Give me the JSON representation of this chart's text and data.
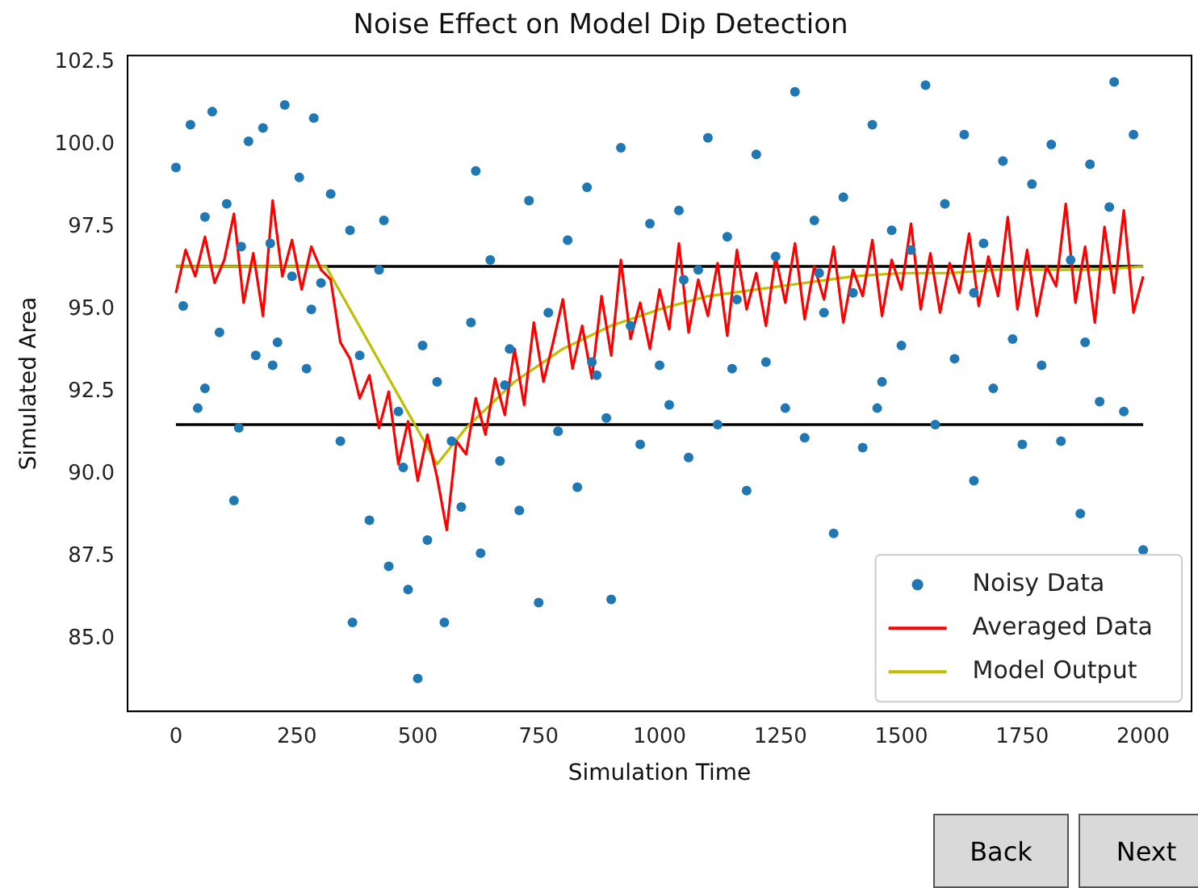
{
  "chart_data": {
    "type": "line",
    "title": "Noise Effect on Model Dip Detection",
    "xlabel": "Simulation Time",
    "ylabel": "Simulated Area",
    "xlim": [
      -100,
      2100
    ],
    "ylim": [
      82.8,
      102.7
    ],
    "xticks": [
      0,
      250,
      500,
      750,
      1000,
      1250,
      1500,
      1750,
      2000
    ],
    "yticks": [
      {
        "value": 85,
        "label": "85.0"
      },
      {
        "value": 87.5,
        "label": "87.5"
      },
      {
        "value": 90,
        "label": "90.0"
      },
      {
        "value": 92.5,
        "label": "92.5"
      },
      {
        "value": 95,
        "label": "95.0"
      },
      {
        "value": 97.5,
        "label": "97.5"
      },
      {
        "value": 100,
        "label": "100.0"
      },
      {
        "value": 102.5,
        "label": "102.5"
      }
    ],
    "grid": false,
    "legend": "bottom right",
    "ref_lines": [
      {
        "axis": "y",
        "value": 96.3,
        "color": "#000000"
      },
      {
        "axis": "y",
        "value": 91.5,
        "color": "#000000"
      }
    ],
    "series": [
      {
        "name": "Noisy Data",
        "type": "scatter",
        "marker": "circle",
        "color": "#1f77b4",
        "x": [
          0,
          15,
          30,
          45,
          60,
          75,
          90,
          105,
          120,
          135,
          150,
          165,
          180,
          195,
          210,
          225,
          240,
          255,
          270,
          285,
          300,
          320,
          340,
          360,
          365,
          380,
          400,
          420,
          440,
          460,
          480,
          500,
          510,
          520,
          540,
          555,
          570,
          590,
          610,
          630,
          650,
          670,
          690,
          710,
          730,
          750,
          770,
          790,
          810,
          830,
          850,
          870,
          890,
          900,
          920,
          940,
          960,
          980,
          1000,
          1020,
          1040,
          1060,
          1080,
          1100,
          1120,
          1140,
          1160,
          1180,
          1200,
          1220,
          1240,
          1260,
          1280,
          1300,
          1320,
          1340,
          1360,
          1380,
          1400,
          1420,
          1440,
          1460,
          1480,
          1500,
          1520,
          1550,
          1570,
          1590,
          1610,
          1630,
          1650,
          1670,
          1690,
          1710,
          1730,
          1750,
          1770,
          1790,
          1810,
          1830,
          1850,
          1870,
          1890,
          1910,
          1930,
          1940,
          1960,
          1980,
          2000,
          60,
          130,
          200,
          280,
          430,
          470,
          620,
          680,
          860,
          1050,
          1150,
          1330,
          1450,
          1650,
          1880
        ],
        "values": [
          99.3,
          95.1,
          100.6,
          92.0,
          97.8,
          101.0,
          94.3,
          98.2,
          89.2,
          96.9,
          100.1,
          93.6,
          100.5,
          97.0,
          94.0,
          101.2,
          96.0,
          99.0,
          93.2,
          100.8,
          95.8,
          98.5,
          91.0,
          97.4,
          85.5,
          93.6,
          88.6,
          96.2,
          87.2,
          91.9,
          86.5,
          83.8,
          93.9,
          88.0,
          92.8,
          85.5,
          91.0,
          89.0,
          94.6,
          87.6,
          96.5,
          90.4,
          93.8,
          88.9,
          98.3,
          86.1,
          94.9,
          91.3,
          97.1,
          89.6,
          98.7,
          93.0,
          91.7,
          86.2,
          99.9,
          94.5,
          90.9,
          97.6,
          93.3,
          92.1,
          98.0,
          90.5,
          96.2,
          100.2,
          91.5,
          97.2,
          95.3,
          89.5,
          99.7,
          93.4,
          96.6,
          92.0,
          101.6,
          91.1,
          97.7,
          94.9,
          88.2,
          98.4,
          95.5,
          90.8,
          100.6,
          92.8,
          97.4,
          93.9,
          96.8,
          101.8,
          91.5,
          98.2,
          93.5,
          100.3,
          89.8,
          97.0,
          92.6,
          99.5,
          94.1,
          90.9,
          98.8,
          93.3,
          100.0,
          91.0,
          96.5,
          88.8,
          99.4,
          92.2,
          98.1,
          101.9,
          91.9,
          100.3,
          87.7,
          92.6,
          91.4,
          93.3,
          95.0,
          97.7,
          90.2,
          99.2,
          92.7,
          93.4,
          95.9,
          93.2,
          96.1,
          92.0,
          95.5,
          94.0
        ]
      },
      {
        "name": "Averaged Data",
        "marker": "none",
        "line_style": "solid",
        "color": "#ff0000",
        "x": [
          0,
          20,
          40,
          60,
          80,
          100,
          120,
          140,
          160,
          180,
          200,
          220,
          240,
          260,
          280,
          300,
          320,
          340,
          360,
          380,
          400,
          420,
          440,
          460,
          480,
          500,
          520,
          540,
          560,
          580,
          600,
          620,
          640,
          660,
          680,
          700,
          720,
          740,
          760,
          780,
          800,
          820,
          840,
          860,
          880,
          900,
          920,
          940,
          960,
          980,
          1000,
          1020,
          1040,
          1060,
          1080,
          1100,
          1120,
          1140,
          1160,
          1180,
          1200,
          1220,
          1240,
          1260,
          1280,
          1300,
          1320,
          1340,
          1360,
          1380,
          1400,
          1420,
          1440,
          1460,
          1480,
          1500,
          1520,
          1540,
          1560,
          1580,
          1600,
          1620,
          1640,
          1660,
          1680,
          1700,
          1720,
          1740,
          1760,
          1780,
          1800,
          1820,
          1840,
          1860,
          1880,
          1900,
          1920,
          1940,
          1960,
          1980,
          2000
        ],
        "values": [
          95.5,
          96.8,
          96.0,
          97.2,
          95.8,
          96.5,
          97.9,
          95.2,
          96.7,
          94.8,
          98.3,
          96.0,
          97.1,
          95.6,
          96.9,
          96.2,
          95.9,
          94.0,
          93.5,
          92.3,
          93.0,
          91.4,
          92.5,
          90.3,
          91.6,
          89.8,
          91.2,
          89.9,
          88.3,
          91.0,
          90.6,
          92.3,
          91.2,
          92.9,
          91.8,
          93.8,
          92.1,
          94.6,
          92.8,
          94.0,
          95.3,
          93.2,
          94.5,
          92.9,
          95.4,
          93.6,
          96.5,
          94.1,
          95.2,
          93.8,
          95.6,
          94.4,
          97.0,
          94.3,
          95.9,
          94.8,
          96.4,
          94.2,
          96.8,
          95.0,
          96.1,
          94.5,
          96.6,
          95.2,
          97.0,
          94.7,
          96.3,
          95.3,
          96.9,
          94.6,
          96.2,
          95.4,
          97.1,
          94.8,
          96.5,
          95.6,
          97.6,
          95.0,
          96.7,
          94.9,
          96.4,
          95.5,
          97.3,
          95.1,
          96.6,
          95.4,
          97.8,
          95.0,
          96.8,
          94.8,
          96.3,
          95.7,
          98.2,
          95.2,
          96.9,
          94.6,
          97.5,
          95.5,
          98.0,
          94.9,
          96.0
        ]
      },
      {
        "name": "Model Output",
        "marker": "none",
        "line_style": "solid",
        "color": "#bfbf00",
        "x": [
          0,
          310,
          540,
          600,
          700,
          800,
          900,
          1000,
          1100,
          1200,
          1300,
          1400,
          1500,
          1600,
          1700,
          1800,
          1900,
          2000
        ],
        "values": [
          96.3,
          96.3,
          90.3,
          91.4,
          92.8,
          93.8,
          94.5,
          95.0,
          95.4,
          95.6,
          95.8,
          96.0,
          96.1,
          96.1,
          96.2,
          96.2,
          96.2,
          96.3
        ]
      }
    ],
    "annotations": [
      "Back",
      "Next"
    ]
  }
}
